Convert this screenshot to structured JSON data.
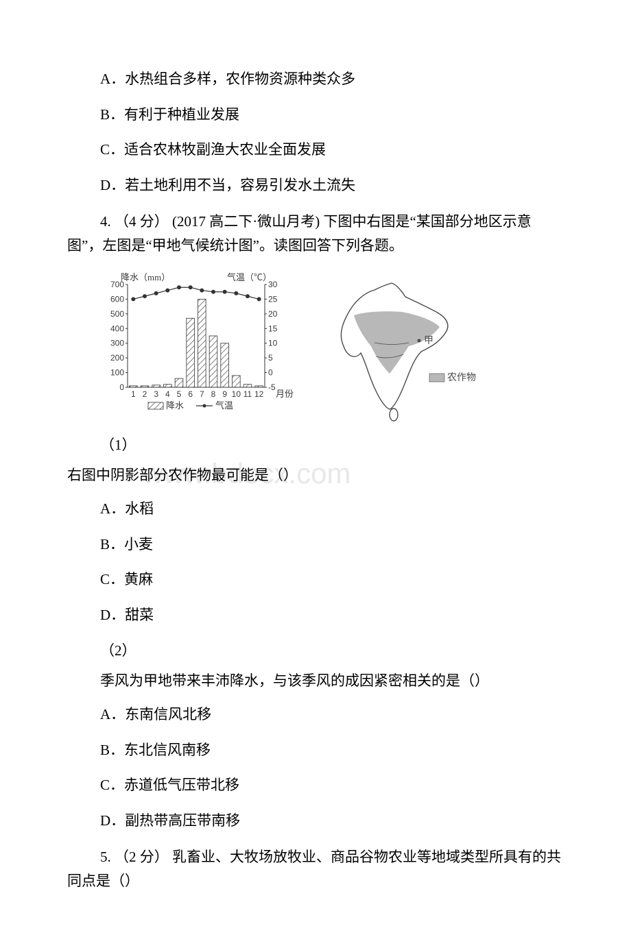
{
  "q3_options": {
    "A": "A．水热组合多样，农作物资源种类众多",
    "B": "B．有利于种植业发展",
    "C": "C．适合农林牧副渔大农业全面发展",
    "D": "D．若土地利用不当，容易引发水土流失"
  },
  "q4": {
    "stem": "4.  （4 分） (2017 高二下·微山月考)  下图中右图是“某国部分地区示意图”，左图是“甲地气候统计图”。读图回答下列各题。",
    "sub1_num": "（1）",
    "sub1_stem": "右图中阴影部分农作物最可能是（）",
    "sub1_options": {
      "A": "A．水稻",
      "B": "B．小麦",
      "C": "C．黄麻",
      "D": "D．甜菜"
    },
    "sub2_num": "（2）",
    "sub2_stem": "季风为甲地带来丰沛降水，与该季风的成因紧密相关的是（）",
    "sub2_options": {
      "A": "A．东南信风北移",
      "B": "B．东北信风南移",
      "C": "C．赤道低气压带北移",
      "D": "D．副热带高压带南移"
    }
  },
  "q5": {
    "stem": "5.  （2 分） 乳畜业、大牧场放牧业、商品谷物农业等地域类型所具有的共同点是（）"
  },
  "watermark_text": "www.bdocx.com",
  "climograph": {
    "type": "climograph",
    "title_left": "降水（mm）",
    "title_right": "气温（℃）",
    "x_label": "月份",
    "x_ticks": [
      "1",
      "2",
      "3",
      "4",
      "5",
      "6",
      "7",
      "8",
      "9",
      "10",
      "11",
      "12"
    ],
    "precip_y_ticks": [
      0,
      100,
      200,
      300,
      400,
      500,
      600,
      700
    ],
    "temp_y_ticks": [
      -5,
      0,
      5,
      10,
      15,
      20,
      25,
      30
    ],
    "precip_values_mm": [
      10,
      10,
      15,
      20,
      60,
      470,
      600,
      350,
      300,
      80,
      20,
      10
    ],
    "temp_values_c": [
      25,
      26,
      27,
      28,
      29,
      29,
      28,
      27.5,
      27.5,
      27,
      26,
      25
    ],
    "bar_fill": "#ffffff",
    "bar_hatch_color": "#5a5a5a",
    "line_color": "#333333",
    "marker_color": "#333333",
    "axis_color": "#333333",
    "grid_color": "#999999",
    "background_color": "#ffffff",
    "precip_ylim": [
      0,
      700
    ],
    "temp_ylim": [
      -5,
      30
    ],
    "bar_width_ratio": 0.7,
    "line_width": 1.2,
    "marker_size": 3,
    "legend_precip": "降水",
    "legend_temp": "气温"
  },
  "map": {
    "type": "map",
    "outline_color": "#4a4a4a",
    "crop_fill": "#b8b8b8",
    "crop_label": "农作物",
    "point_label": "甲",
    "background": "#ffffff",
    "legend_box_fill": "#b8b8b8",
    "outline_width": 1.4
  }
}
